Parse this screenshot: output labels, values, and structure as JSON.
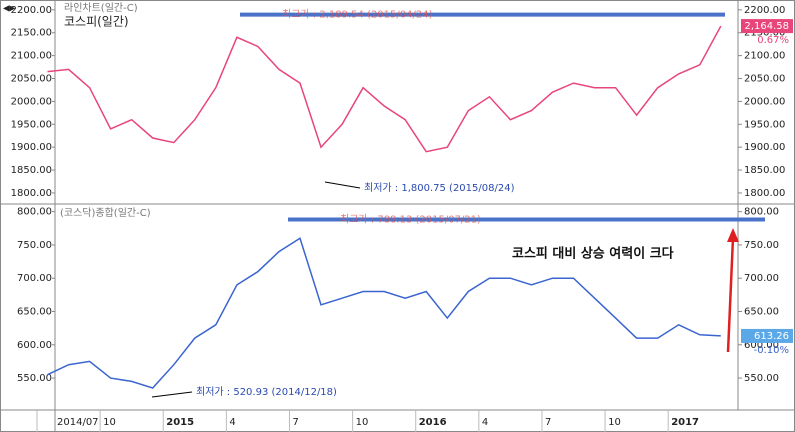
{
  "chart_data": [
    {
      "type": "line",
      "title": "라인차트(일간-C)",
      "series": [
        {
          "name": "코스피(일간)",
          "color": "#e8457a",
          "values": [
            2065,
            2070,
            2030,
            1940,
            1960,
            1920,
            1910,
            1960,
            2030,
            2140,
            2120,
            2070,
            2040,
            1900,
            1950,
            2030,
            1990,
            1960,
            1890,
            1900,
            1980,
            2010,
            1960,
            1980,
            2020,
            2040,
            2030,
            2030,
            1970,
            2030,
            2060,
            2080,
            2164.58
          ],
          "value_labels": [
            null,
            null,
            null,
            null,
            null,
            null,
            null,
            null,
            null,
            null,
            null,
            null,
            null,
            null,
            null,
            null,
            null,
            null,
            null,
            null,
            null,
            null,
            null,
            null,
            null,
            null,
            null,
            null,
            null,
            null,
            null,
            null,
            "2,164.58"
          ],
          "change_label": "0.67%"
        }
      ],
      "ylim": [
        1778,
        2215
      ],
      "yticks": [
        {
          "value": 1800,
          "label": "1800.00"
        },
        {
          "value": 1850,
          "label": "1850.00"
        },
        {
          "value": 1900,
          "label": "1900.00"
        },
        {
          "value": 1950,
          "label": "1950.00"
        },
        {
          "value": 2000,
          "label": "2000.00"
        },
        {
          "value": 2050,
          "label": "2050.00"
        },
        {
          "value": 2100,
          "label": "2100.00"
        },
        {
          "value": 2150,
          "label": "2150.00"
        },
        {
          "value": 2200,
          "label": "2200.00"
        }
      ],
      "grid": false,
      "max_annotation": {
        "label": "최고가 : 2,189.54 (2015/04/24)",
        "value": 2189.54
      },
      "min_annotation": {
        "label": "최저가 : 1,800.75 (2015/08/24)",
        "value": 1800.75
      }
    },
    {
      "type": "line",
      "title": "(코스닥)종합(일간-C)",
      "categories": [
        "2014/07",
        null,
        null,
        "10",
        null,
        null,
        "2015",
        null,
        null,
        "4",
        null,
        null,
        "7",
        null,
        null,
        "10",
        null,
        null,
        "2016",
        null,
        null,
        "4",
        null,
        null,
        "7",
        null,
        null,
        "10",
        null,
        null,
        "2017",
        null,
        null
      ],
      "series": [
        {
          "name": "(코스닥)종합(일간-C)",
          "color": "#3a64d0",
          "values": [
            555,
            570,
            575,
            550,
            545,
            535,
            570,
            610,
            630,
            690,
            710,
            740,
            760,
            660,
            670,
            680,
            680,
            670,
            680,
            640,
            680,
            700,
            700,
            690,
            700,
            700,
            670,
            640,
            610,
            610,
            630,
            615,
            613.26
          ],
          "change_label": "-0.10%"
        }
      ],
      "ylim": [
        502,
        810
      ],
      "yticks": [
        {
          "value": 550,
          "label": "550.00"
        },
        {
          "value": 600,
          "label": "600.00"
        },
        {
          "value": 650,
          "label": "650.00"
        },
        {
          "value": 700,
          "label": "700.00"
        },
        {
          "value": 750,
          "label": "750.00"
        },
        {
          "value": 800,
          "label": "800.00"
        }
      ],
      "grid": false,
      "max_annotation": {
        "label": "최고가 : 788.13 (2015/07/21)",
        "value": 788.13
      },
      "min_annotation": {
        "label": "최저가 : 520.93 (2014/12/18)",
        "value": 520.93
      },
      "annotation": "코스피 대비 상승 여력이 크다"
    }
  ]
}
